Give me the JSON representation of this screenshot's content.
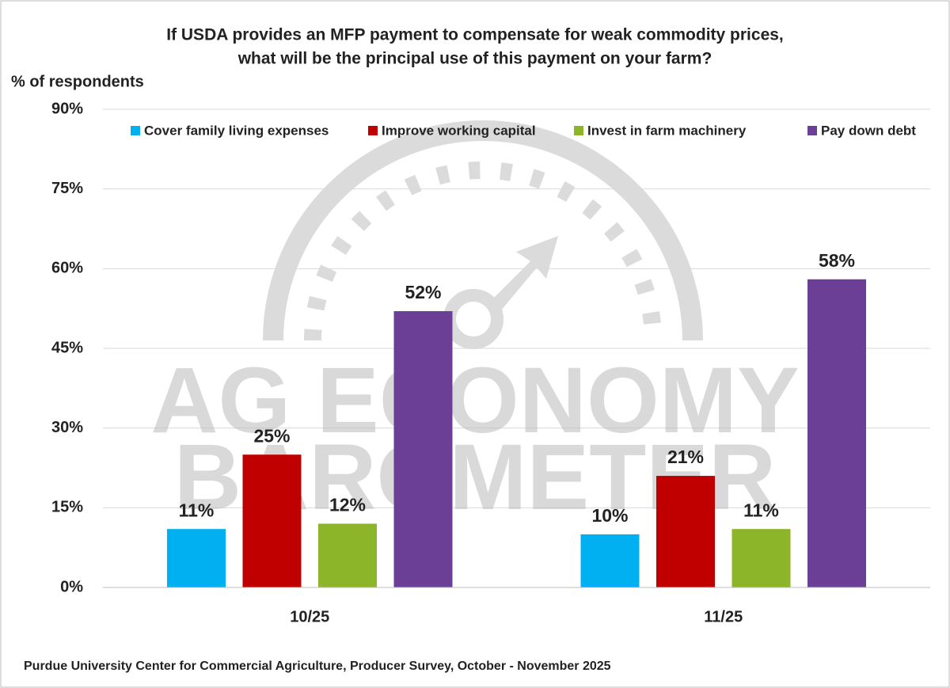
{
  "chart_data": {
    "type": "bar",
    "title": [
      "If USDA provides an MFP payment to compensate for weak commodity prices,",
      "what will be the principal use of this payment on your farm?"
    ],
    "y_label": "% of respondents",
    "source": "Purdue University Center for Commercial Agriculture, Producer Survey, October - November 2025",
    "watermark": [
      "AG ECONOMY",
      "BAROMETER"
    ],
    "categories": [
      "10/25",
      "11/25"
    ],
    "series": [
      {
        "name": "Cover family living expenses",
        "color": "#00b0f0",
        "values": [
          11,
          10
        ],
        "value_labels": [
          "11%",
          "10%"
        ]
      },
      {
        "name": "Improve working capital",
        "color": "#c00000",
        "values": [
          25,
          21
        ],
        "value_labels": [
          "25%",
          "21%"
        ]
      },
      {
        "name": "Invest in farm machinery",
        "color": "#8db52a",
        "values": [
          12,
          11
        ],
        "value_labels": [
          "12%",
          "11%"
        ]
      },
      {
        "name": "Pay down debt",
        "color": "#6c3f96",
        "values": [
          52,
          58
        ],
        "value_labels": [
          "52%",
          "58%"
        ]
      }
    ],
    "ylim": [
      0,
      90
    ],
    "yticks": [
      {
        "value": 0,
        "label": "0%"
      },
      {
        "value": 15,
        "label": "15%"
      },
      {
        "value": 30,
        "label": "30%"
      },
      {
        "value": 45,
        "label": "45%"
      },
      {
        "value": 60,
        "label": "60%"
      },
      {
        "value": 75,
        "label": "75%"
      },
      {
        "value": 90,
        "label": "90%"
      }
    ],
    "grid": true,
    "legend": "top"
  }
}
